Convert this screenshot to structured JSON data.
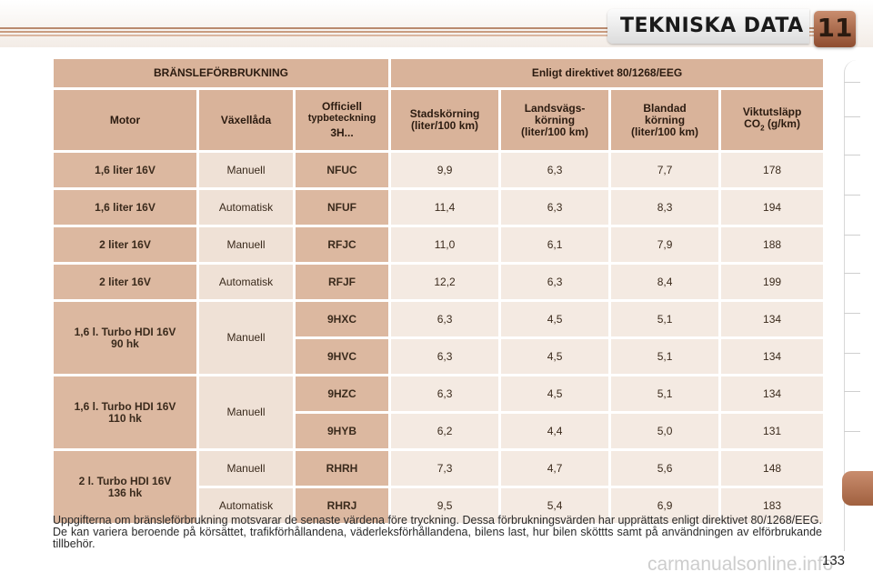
{
  "header": {
    "title": "TEKNISKA DATA",
    "chapter": "11"
  },
  "table": {
    "group_left": "BRÄNSLEFÖRBRUKNING",
    "group_right": "Enligt direktivet 80/1268/EEG",
    "columns": {
      "motor": "Motor",
      "gearbox": "Växellåda",
      "type_line1": "Officiell",
      "type_line2": "typbeteckning",
      "type_line3": "3H...",
      "city_line1": "Stadskörning",
      "city_line2": "(liter/100 km)",
      "road_line1": "Landsvägs-",
      "road_line2": "körning",
      "road_line3": "(liter/100 km)",
      "mixed_line1": "Blandad",
      "mixed_line2": "körning",
      "mixed_line3": "(liter/100 km)",
      "co2_line1": "Viktutsläpp",
      "co2_prefix": "CO",
      "co2_sub": "2",
      "co2_unit": "(g/km)"
    },
    "engines": [
      {
        "line1": "1,6 liter 16V",
        "line2": ""
      },
      {
        "line1": "1,6 liter 16V",
        "line2": ""
      },
      {
        "line1": "2 liter 16V",
        "line2": ""
      },
      {
        "line1": "2 liter 16V",
        "line2": ""
      },
      {
        "line1": "1,6 l. Turbo HDI 16V",
        "line2": "90 hk"
      },
      {
        "line1": "1,6 l. Turbo HDI 16V",
        "line2": "110 hk"
      },
      {
        "line1": "2 l. Turbo HDI 16V",
        "line2": "136 hk"
      }
    ],
    "rows": [
      {
        "gearbox": "Manuell",
        "code": "NFUC",
        "city": "9,9",
        "road": "6,3",
        "mixed": "7,7",
        "co2": "178"
      },
      {
        "gearbox": "Automatisk",
        "code": "NFUF",
        "city": "11,4",
        "road": "6,3",
        "mixed": "8,3",
        "co2": "194"
      },
      {
        "gearbox": "Manuell",
        "code": "RFJC",
        "city": "11,0",
        "road": "6,1",
        "mixed": "7,9",
        "co2": "188"
      },
      {
        "gearbox": "Automatisk",
        "code": "RFJF",
        "city": "12,2",
        "road": "6,3",
        "mixed": "8,4",
        "co2": "199"
      },
      {
        "gearbox": "Manuell",
        "code": "9HXC",
        "city": "6,3",
        "road": "4,5",
        "mixed": "5,1",
        "co2": "134"
      },
      {
        "gearbox": "",
        "code": "9HVC",
        "city": "6,3",
        "road": "4,5",
        "mixed": "5,1",
        "co2": "134"
      },
      {
        "gearbox": "Manuell",
        "code": "9HZC",
        "city": "6,3",
        "road": "4,5",
        "mixed": "5,1",
        "co2": "134"
      },
      {
        "gearbox": "",
        "code": "9HYB",
        "city": "6,2",
        "road": "4,4",
        "mixed": "5,0",
        "co2": "131"
      },
      {
        "gearbox": "Manuell",
        "code": "RHRH",
        "city": "7,3",
        "road": "4,7",
        "mixed": "5,6",
        "co2": "148"
      },
      {
        "gearbox": "Automatisk",
        "code": "RHRJ",
        "city": "9,5",
        "road": "5,4",
        "mixed": "6,9",
        "co2": "183"
      }
    ]
  },
  "footnote": "Uppgifterna om bränsleförbrukning motsvarar de senaste värdena före tryckning. Dessa förbrukningsvärden har upprättats enligt direktivet 80/1268/EEG. De kan variera beroende på körsättet, trafikförhållandena, väderleksförhållandena, bilens last, hur bilen sköttts samt på användningen av elförbrukande tillbehör.",
  "page_number": "133",
  "watermark": "carmanualsonline.info",
  "colors": {
    "header_cell": "#d9b39a",
    "value_cell": "#f4eae2",
    "accent": "#a0603f"
  }
}
